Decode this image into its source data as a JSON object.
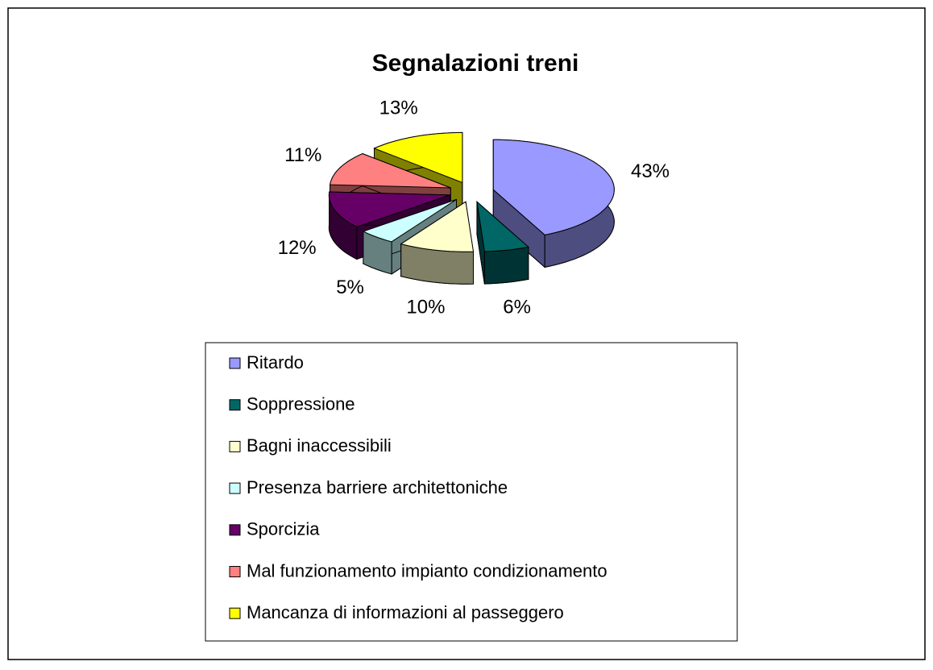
{
  "chart_data": {
    "type": "pie",
    "title": "Segnalazioni treni",
    "categories": [
      "Ritardo",
      "Soppressione",
      "Bagni inaccessibili",
      "Presenza barriere architettoniche",
      "Sporcizia",
      "Mal funzionamento impianto condizionamento",
      "Mancanza di informazioni al passeggero"
    ],
    "values": [
      43,
      6,
      10,
      5,
      12,
      11,
      13
    ],
    "value_labels": [
      "43%",
      "6%",
      "10%",
      "5%",
      "12%",
      "11%",
      "13%"
    ],
    "colors": [
      "#9999ff",
      "#006666",
      "#ffffcc",
      "#ccffff",
      "#660066",
      "#ff8080",
      "#ffff00"
    ],
    "legend": "bottom"
  }
}
